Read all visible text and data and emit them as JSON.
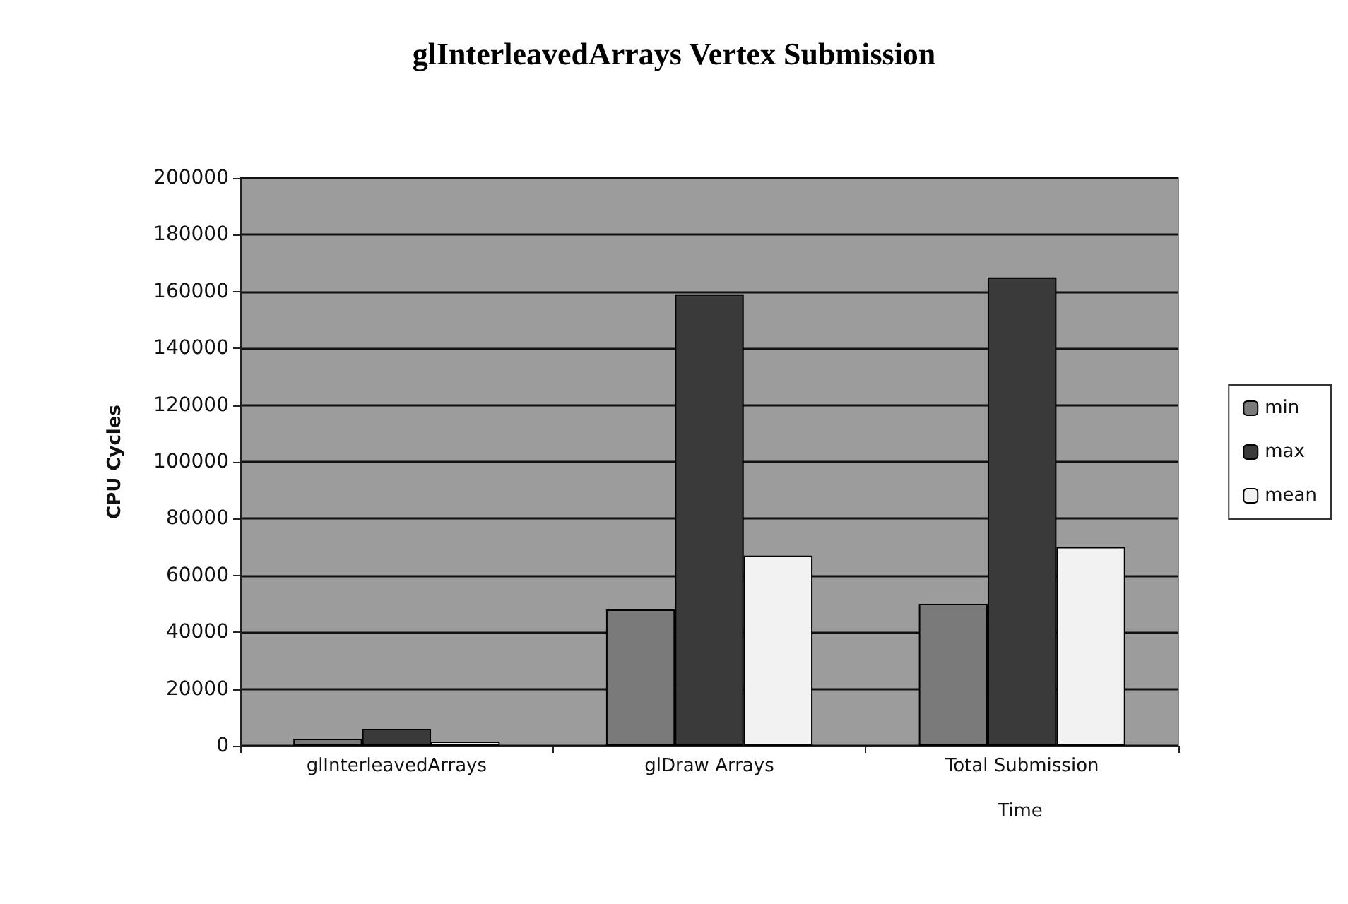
{
  "chart_data": {
    "type": "bar",
    "title": "glInterleavedArrays Vertex Submission",
    "xlabel": "Time",
    "ylabel": "CPU Cycles",
    "categories": [
      "glInterleavedArrays",
      "glDraw Arrays",
      "Total Submission"
    ],
    "series": [
      {
        "name": "min",
        "color": "#7a7a7a",
        "values": [
          2500,
          48000,
          50000
        ]
      },
      {
        "name": "max",
        "color": "#3a3a3a",
        "values": [
          6000,
          159000,
          165000
        ]
      },
      {
        "name": "mean",
        "color": "#f2f2f2",
        "values": [
          1500,
          67000,
          70000
        ]
      }
    ],
    "ylim": [
      0,
      200000
    ],
    "yticks": [
      0,
      20000,
      40000,
      60000,
      80000,
      100000,
      120000,
      140000,
      160000,
      180000,
      200000
    ],
    "grid": "y",
    "legend": "right"
  }
}
